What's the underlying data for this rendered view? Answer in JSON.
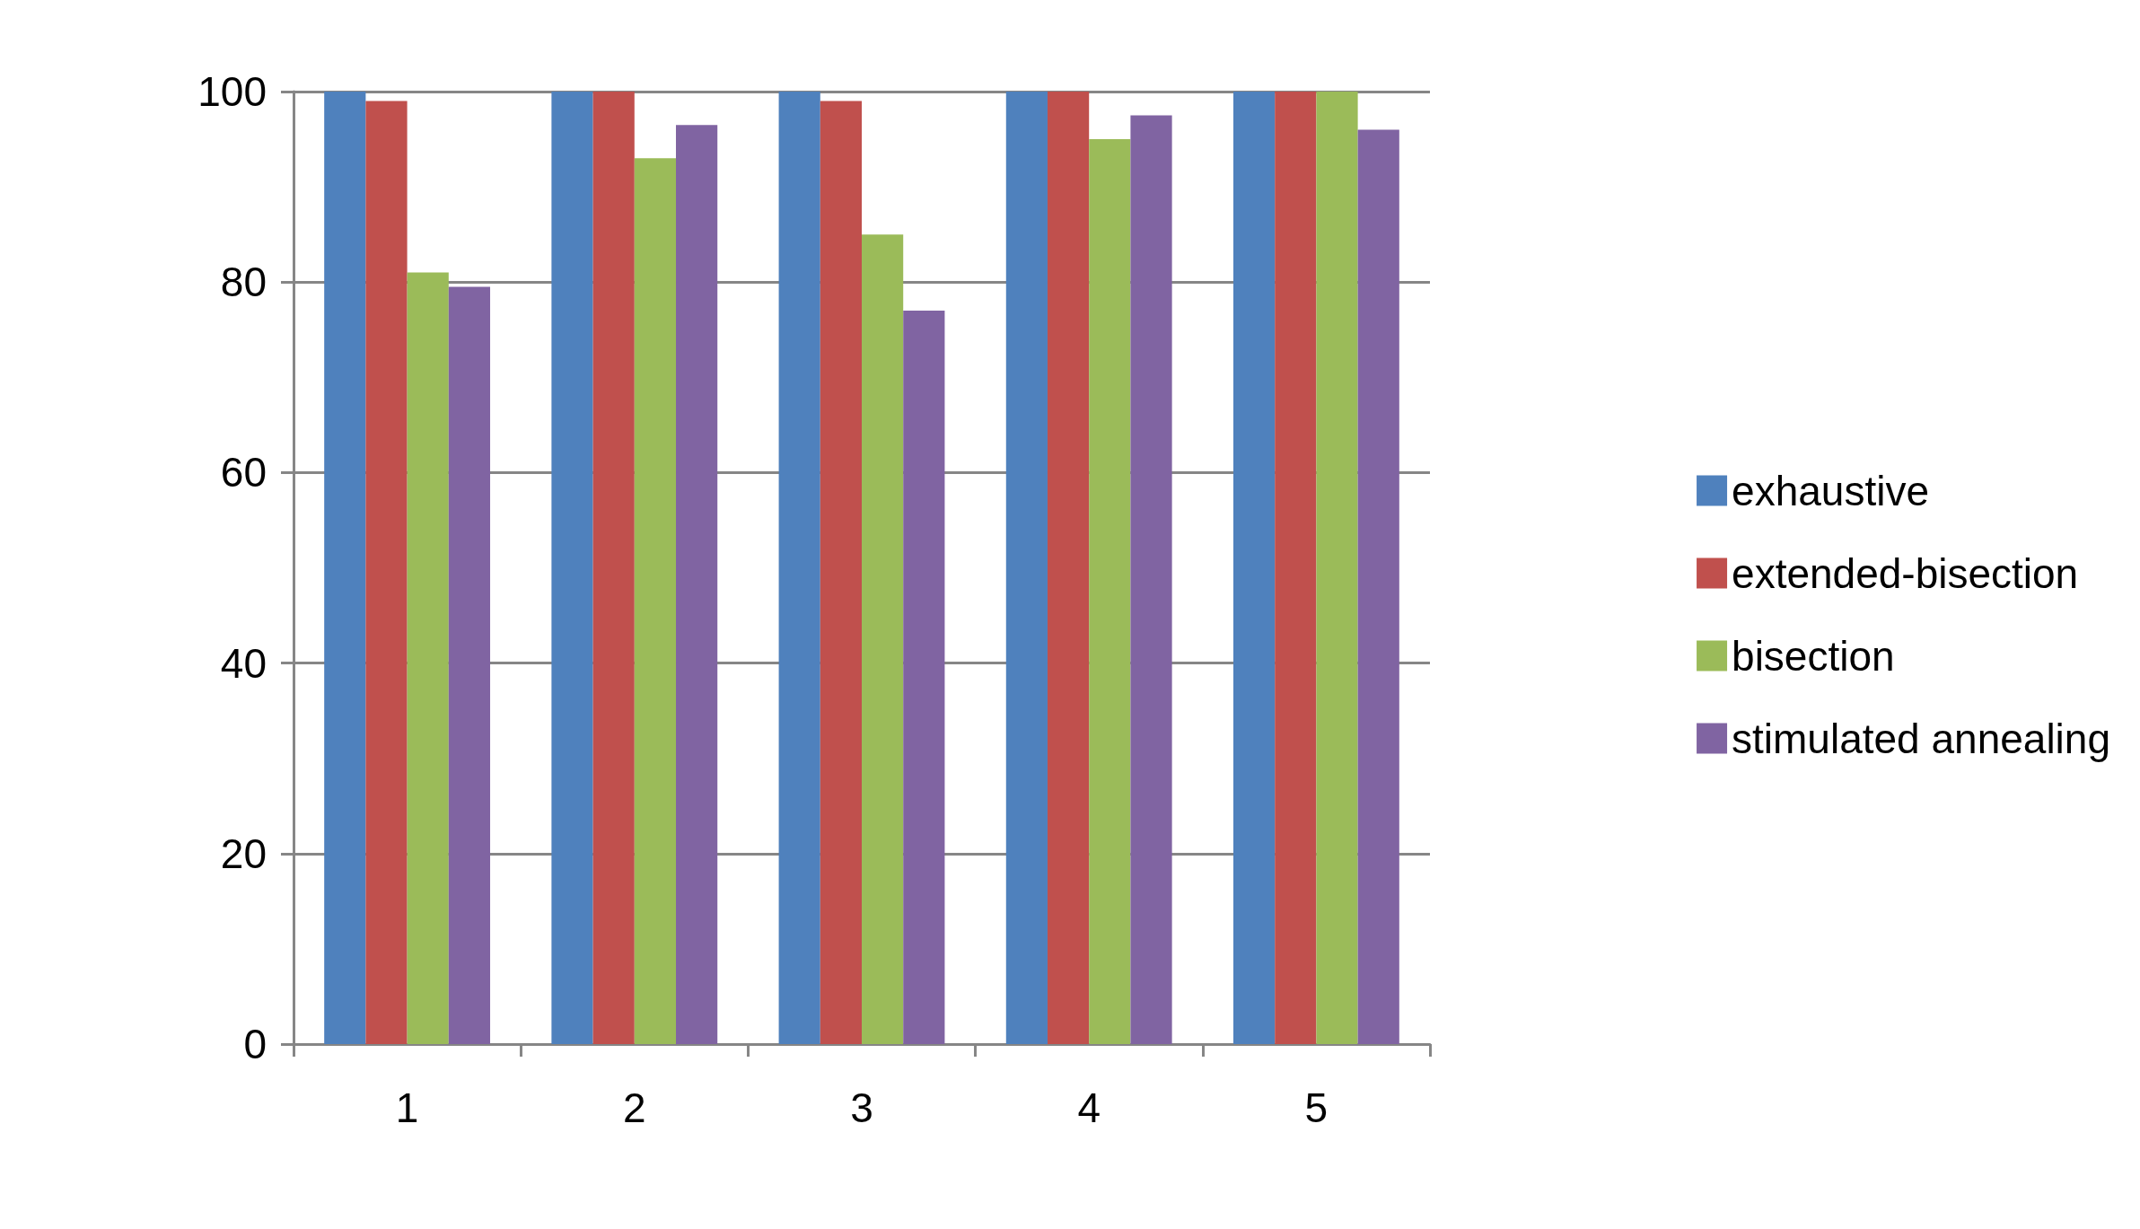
{
  "chart_data": {
    "type": "bar",
    "categories": [
      "1",
      "2",
      "3",
      "4",
      "5"
    ],
    "series": [
      {
        "name": "exhaustive",
        "color": "#4f81bd",
        "values": [
          100,
          100,
          100,
          100,
          100
        ]
      },
      {
        "name": "extended-bisection",
        "color": "#c0504d",
        "values": [
          99,
          100,
          99,
          100,
          100
        ]
      },
      {
        "name": "bisection",
        "color": "#9bbb59",
        "values": [
          81,
          93,
          85,
          95,
          100
        ]
      },
      {
        "name": "stimulated annealing",
        "color": "#8064a2",
        "values": [
          79.5,
          96.5,
          77,
          97.5,
          96
        ]
      }
    ],
    "ylim": [
      0,
      100
    ],
    "yticks": [
      0,
      20,
      40,
      60,
      80,
      100
    ],
    "grid": "y",
    "legend": "right"
  }
}
